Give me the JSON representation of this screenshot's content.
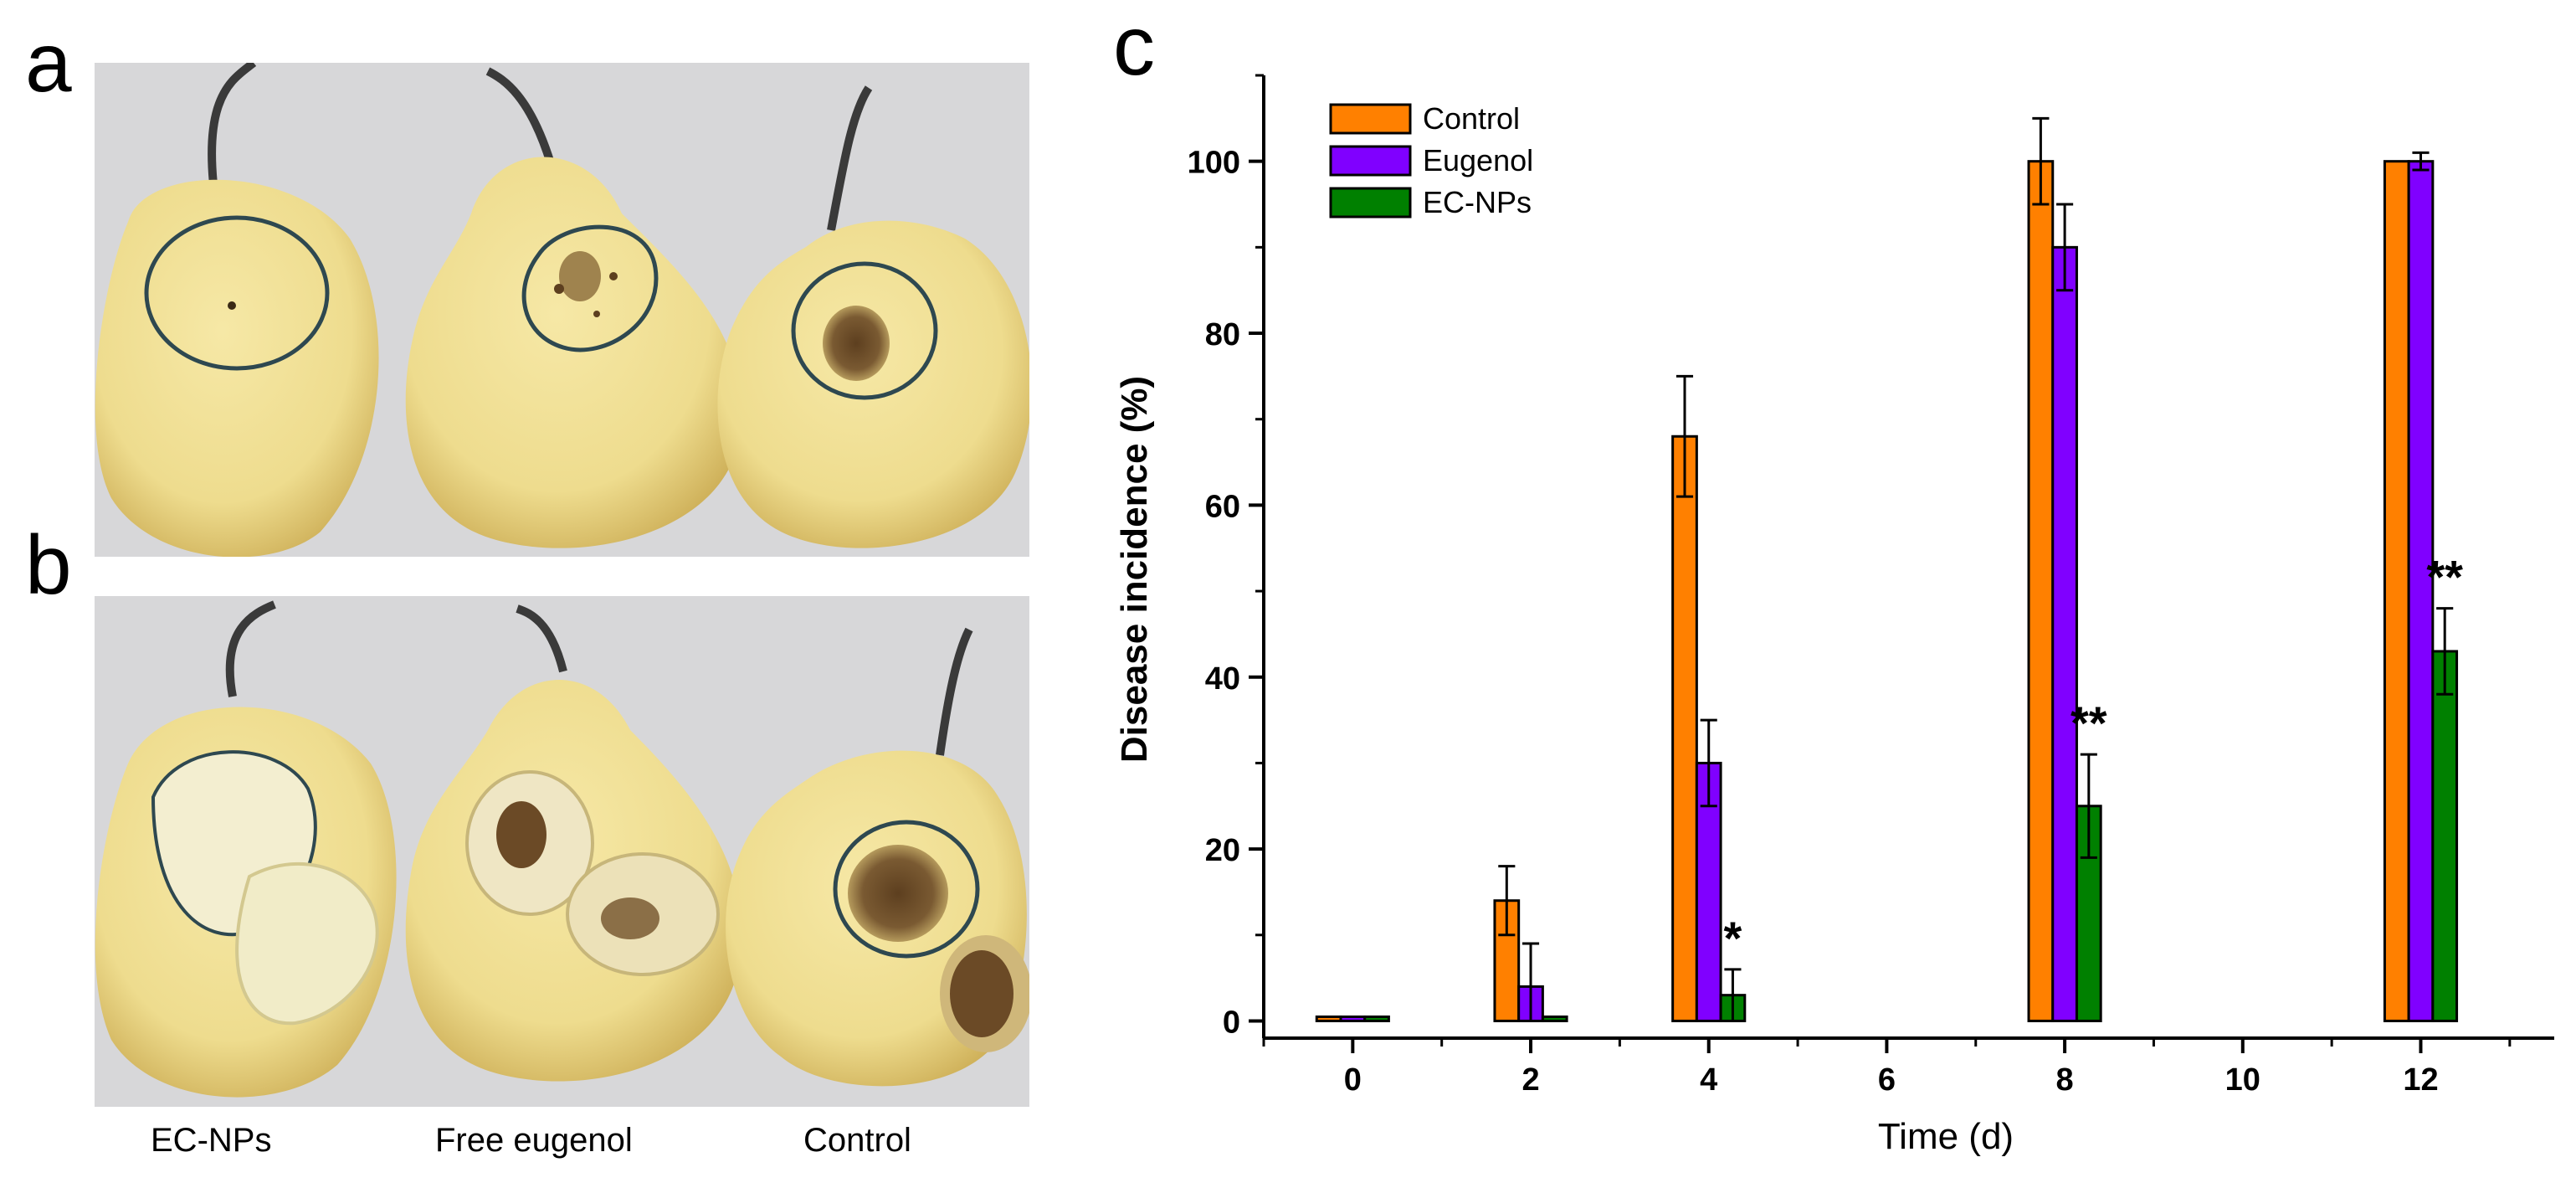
{
  "panels": {
    "a": "a",
    "b": "b",
    "c": "c"
  },
  "photo_captions": [
    "EC-NPs",
    "Free eugenol",
    "Control"
  ],
  "colors": {
    "control": "#ff8000",
    "eugenol": "#8000ff",
    "ecnps": "#008000",
    "pear_skin": "#eedc8e",
    "pear_shade": "#d8bf63",
    "pear_flesh": "#f3eed0",
    "lesion": "#7a5a32",
    "background": "#d7d7d9",
    "marker": "#2e4850"
  },
  "chart_data": {
    "type": "bar",
    "title": "",
    "xlabel": "Time (d)",
    "ylabel": "Disease incidence (%)",
    "xlim": [
      -1,
      13.5
    ],
    "ylim": [
      -2,
      110
    ],
    "x_ticks": [
      0,
      2,
      4,
      6,
      8,
      10,
      12
    ],
    "y_ticks": [
      0,
      20,
      40,
      60,
      80,
      100
    ],
    "grid": false,
    "legend_position": "top-left",
    "categories": [
      0,
      2,
      4,
      8,
      12
    ],
    "series": [
      {
        "name": "Control",
        "color": "#ff8000",
        "values": [
          0,
          14,
          68,
          100,
          100
        ],
        "errors": [
          0,
          4,
          7,
          5,
          0
        ]
      },
      {
        "name": "Eugenol",
        "color": "#8000ff",
        "values": [
          0,
          4,
          30,
          90,
          100
        ],
        "errors": [
          0,
          5,
          5,
          5,
          1
        ]
      },
      {
        "name": "EC-NPs",
        "color": "#008000",
        "values": [
          0,
          0,
          3,
          25,
          43
        ],
        "errors": [
          0,
          0,
          3,
          6,
          5
        ]
      }
    ],
    "annotations": [
      {
        "series": "EC-NPs",
        "x": 4,
        "text": "*"
      },
      {
        "series": "EC-NPs",
        "x": 8,
        "text": "**"
      },
      {
        "series": "EC-NPs",
        "x": 12,
        "text": "**"
      }
    ]
  }
}
